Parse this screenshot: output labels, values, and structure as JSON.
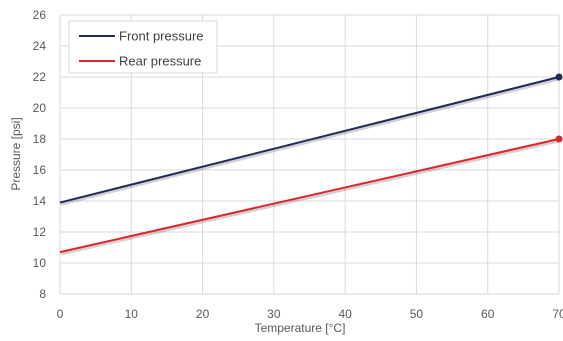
{
  "chart_data": {
    "type": "line",
    "xlabel": "Temperature [°C]",
    "ylabel": "Pressure [psi]",
    "xlim": [
      0,
      70
    ],
    "ylim": [
      8,
      26
    ],
    "x_ticks": [
      0,
      10,
      20,
      30,
      40,
      50,
      60,
      70
    ],
    "y_ticks": [
      8,
      10,
      12,
      14,
      16,
      18,
      20,
      22,
      24,
      26
    ],
    "x_tick_labels": [
      "0",
      "10",
      "20",
      "30",
      "40",
      "50",
      "60",
      "70"
    ],
    "y_tick_labels": [
      "8",
      "10",
      "12",
      "14",
      "16",
      "18",
      "20",
      "22",
      "24",
      "26"
    ],
    "grid": true,
    "legend_position": "top-left",
    "series": [
      {
        "name": "Front pressure",
        "color": "#1f2a5c",
        "x": [
          0,
          70
        ],
        "y": [
          13.9,
          22.0
        ],
        "end_marker": true
      },
      {
        "name": "Rear pressure",
        "color": "#e0242b",
        "x": [
          0,
          70
        ],
        "y": [
          10.7,
          18.0
        ],
        "end_marker": true
      }
    ]
  }
}
